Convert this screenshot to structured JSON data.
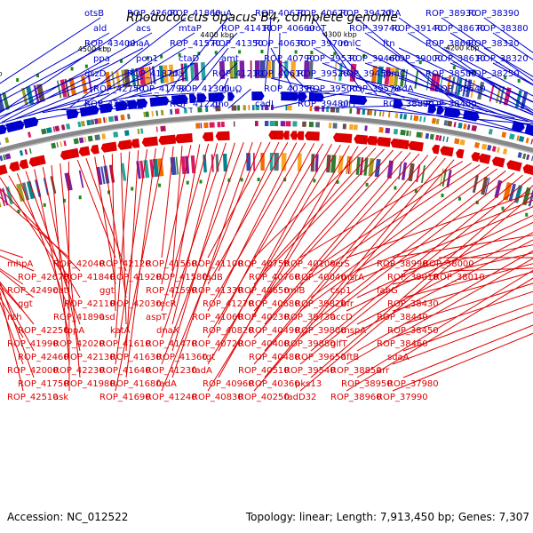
{
  "map": {
    "title": "Rhodococcus opacus B4, complete genome",
    "accession": "Accession: NC_012522",
    "summary": "Topology: linear; Length: 7,913,450 bp; Genes: 7,307"
  },
  "scale_labels": [
    "4700 kbp",
    "4600 kbp",
    "4500 kbp",
    "4400 kbp",
    "4300 kbp",
    "4200 kbp"
  ],
  "colors": {
    "forward": "#0000cc",
    "reverse": "#dd0000",
    "backbone": "#888888"
  },
  "forward_genes": [
    "otsB",
    "ald",
    "ROP_43400",
    "ppa",
    "dszD",
    "ROP_42750",
    "ROP_42710",
    "ROP_42600",
    "acs",
    "nhaA",
    "pon1",
    "ROP_41870",
    "ROP_41790",
    "aglA",
    "ROP_41860",
    "mtaP",
    "ROP_41570",
    "ctaD",
    "cfa",
    "ROP_41300",
    "ROP_41220",
    "leuA",
    "ROP_41410",
    "ROP_41350",
    "amt",
    "ROP_41210",
    "gluQ",
    "gno",
    "ROP_40670",
    "ROP_40660",
    "ROP_40630",
    "ROP_40790",
    "ROP_40610",
    "ROP_40370",
    "cadI",
    "ROP_40620",
    "aroT",
    "ROP_39700",
    "ROP_39530",
    "ROP_39520",
    "ROP_39500",
    "ROP_39480",
    "ROP_39470",
    "ROP_39740",
    "rmlC",
    "ROP_39460",
    "ROP_39450",
    "ROP_39570",
    "glfT",
    "aftA",
    "ROP_39140",
    "ftn",
    "ROP_39000",
    "pimC",
    "sodA",
    "ROP_38890",
    "ROP_38930",
    "ROP_38670",
    "ROP_38660",
    "ROP_38610",
    "ROP_38580",
    "ROP_38540",
    "ROP_38400",
    "ROP_38390",
    "ROP_38380",
    "ROP_38330",
    "ROP_38320",
    "ROP_38250"
  ],
  "reverse_genes": [
    "mhpA",
    "ROP_42670",
    "ROP_42490",
    "ggt",
    "nth",
    "ROP_42250",
    "ROP_41990",
    "ROP_42460",
    "ROP_42000",
    "ROP_41750",
    "ROP_42510",
    "ROP_42040",
    "ROP_41840",
    "catI",
    "ROP_42110",
    "ROP_41890",
    "topA",
    "ROP_42020",
    "ROP_42130",
    "ROP_42230",
    "ROP_41980",
    "ask",
    "ROP_42120",
    "ROP_41920",
    "ggt",
    "ROP_42030",
    "asd",
    "katA",
    "ROP_41610",
    "ROP_41630",
    "ROP_41640",
    "ROP_41680",
    "ROP_41690",
    "ROP_41560",
    "ROP_41580",
    "ROP_41590",
    "recR",
    "aspT",
    "dnaX",
    "ROP_41470",
    "ROP_41360",
    "ROP_41230",
    "fadA",
    "ROP_41240",
    "ROP_41100",
    "fadB",
    "ROP_41330",
    "ROP_41270",
    "ROP_41060",
    "ROP_40820",
    "ROP_40720",
    "tgt",
    "fadA",
    "ROP_40960",
    "ROP_40830",
    "ROP_40750",
    "ROP_40760",
    "ROP_40650",
    "ROP_40680",
    "ROP_40230",
    "ROP_40490",
    "ROP_40400",
    "ROP_40480",
    "ROP_40510",
    "ROP_40360",
    "ROP_40250",
    "ROP_40100",
    "ROP_40040",
    "rmlB",
    "ROP_39820",
    "ROP_39730",
    "ROP_39800",
    "ROP_39880",
    "ROP_39650",
    "ROP_39540",
    "pks13",
    "fadD32",
    "serS",
    "msrA",
    "csp1",
    "bfr",
    "accD",
    "mspA",
    "glfT",
    "aftB",
    "ROP_38850",
    "ROP_38950",
    "ROP_38960",
    "ROP_38990",
    "ROP_39010",
    "fabG",
    "ROP_38430",
    "ROP_38440",
    "ROP_38450",
    "ROP_38460",
    "sdaA",
    "arr",
    "ROP_37980",
    "ROP_37990",
    "ROP_38000",
    "ROP_38010"
  ]
}
